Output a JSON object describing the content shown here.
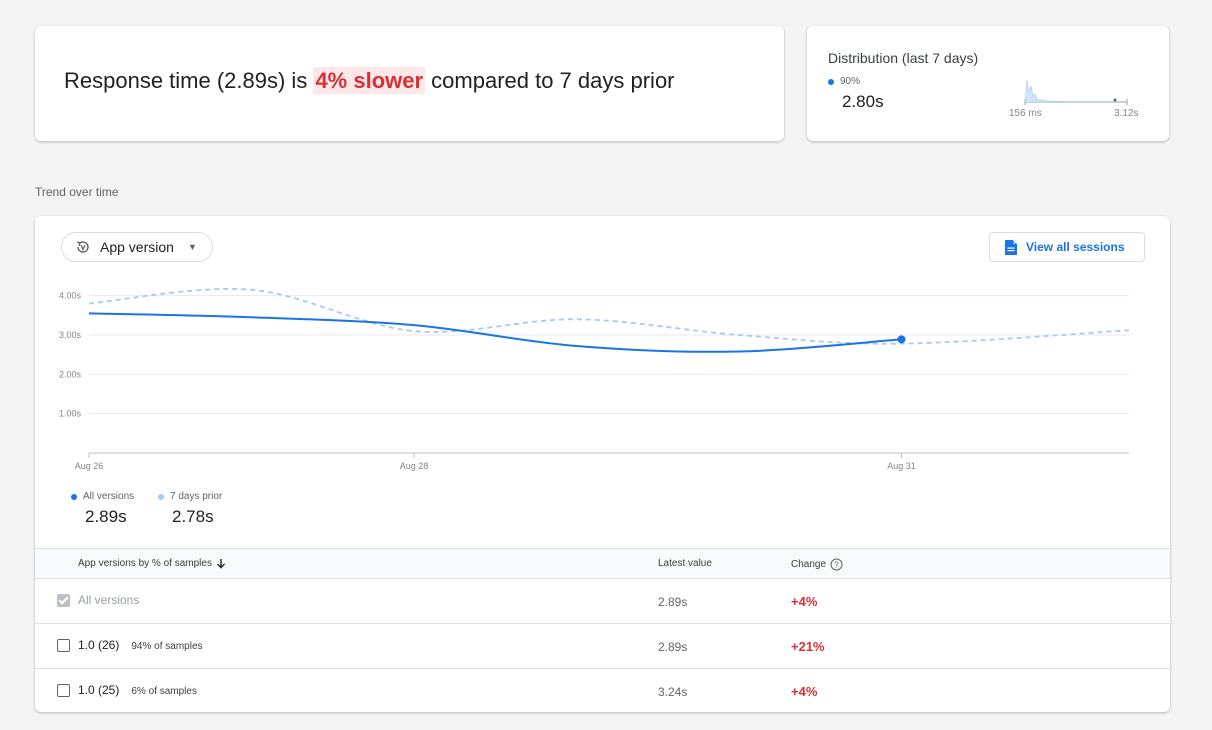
{
  "summary": {
    "prefix": "Response time (2.89s) is ",
    "highlight": "4% slower",
    "suffix": " compared to 7 days prior"
  },
  "distribution": {
    "title": "Distribution (last 7 days)",
    "percentile_label": "90%",
    "value": "2.80s",
    "axis_min_label": "156 ms",
    "axis_max_label": "3.12s"
  },
  "trend": {
    "heading": "Trend over time",
    "dropdown_label": "App version",
    "view_sessions_label": "View all sessions"
  },
  "chart_data": {
    "type": "line",
    "x_tick_labels": [
      "Aug 26",
      "Aug 28",
      "Aug 31"
    ],
    "y_tick_labels": [
      "4.00s",
      "3.00s",
      "2.00s",
      "1.00s"
    ],
    "ylim": [
      0,
      4.5
    ],
    "x_range": [
      0,
      6.4
    ],
    "x_ticks": [
      0,
      2,
      5
    ],
    "y_ticks": [
      4,
      3,
      2,
      1
    ],
    "grid": true,
    "series": [
      {
        "name": "All versions",
        "color": "#1a73e8",
        "style": "solid",
        "x": [
          0,
          1,
          2,
          3,
          4,
          5
        ],
        "y": [
          3.55,
          3.45,
          3.25,
          2.72,
          2.58,
          2.89
        ]
      },
      {
        "name": "7 days prior",
        "color": "#a8c7fa",
        "style": "dashed",
        "x": [
          0,
          1,
          2,
          3,
          4,
          5,
          6.4
        ],
        "y": [
          3.8,
          4.15,
          3.1,
          3.4,
          3.0,
          2.78,
          3.12
        ]
      }
    ]
  },
  "legend": [
    {
      "name": "All versions",
      "value": "2.89s",
      "color": "#1a73e8"
    },
    {
      "name": "7 days prior",
      "value": "2.78s",
      "color": "#a8c7fa"
    }
  ],
  "table": {
    "col_version": "App versions by % of samples",
    "col_latest": "Latest value",
    "col_change": "Change",
    "rows": [
      {
        "label": "All versions",
        "sub": "",
        "latest": "2.89s",
        "change": "+4%",
        "checked": true
      },
      {
        "label": "1.0 (26)",
        "sub": "94% of samples",
        "latest": "2.89s",
        "change": "+21%",
        "checked": false
      },
      {
        "label": "1.0 (25)",
        "sub": "6% of samples",
        "latest": "3.24s",
        "change": "+4%",
        "checked": false
      }
    ]
  }
}
